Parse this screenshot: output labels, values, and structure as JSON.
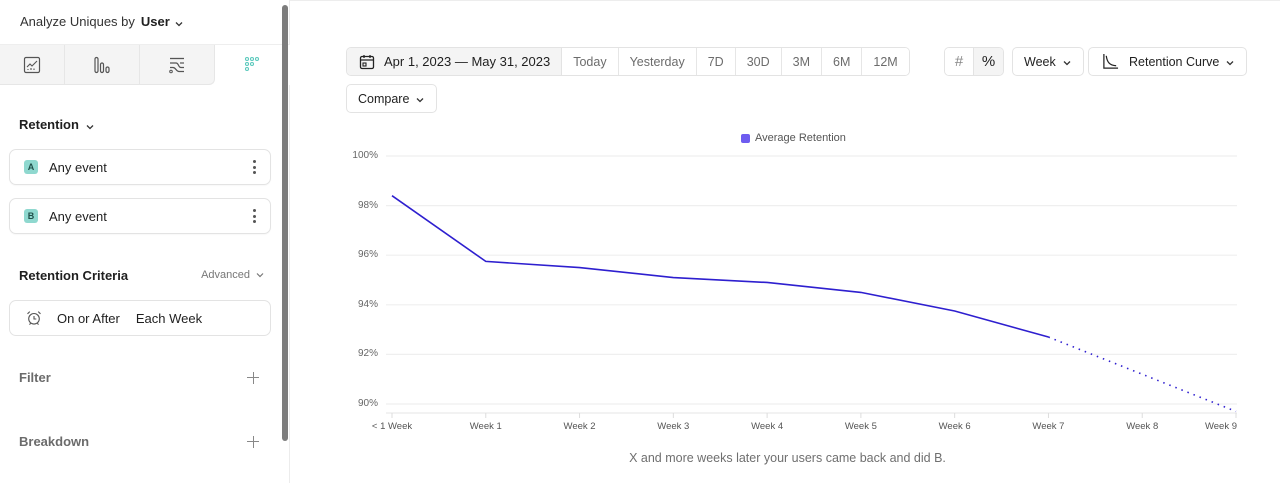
{
  "sidebar": {
    "analyze_label": "Analyze Uniques by",
    "analyze_value": "User",
    "report_tabs": [
      {
        "icon": "insights-chart-icon",
        "active": false
      },
      {
        "icon": "funnels-bars-icon",
        "active": false
      },
      {
        "icon": "flows-icon",
        "active": false
      },
      {
        "icon": "retention-dots-icon",
        "active": true
      }
    ],
    "section_title": "Retention",
    "events": [
      {
        "badge": "A",
        "name": "Any event"
      },
      {
        "badge": "B",
        "name": "Any event"
      }
    ],
    "criteria_title": "Retention Criteria",
    "advanced_label": "Advanced",
    "criteria": {
      "icon": "alarm-clock-icon",
      "condition": "On or After",
      "period": "Each Week"
    },
    "filter_label": "Filter",
    "breakdown_label": "Breakdown"
  },
  "toolbar": {
    "date_range": "Apr 1, 2023 — May 31, 2023",
    "presets": [
      "Today",
      "Yesterday",
      "7D",
      "30D",
      "3M",
      "6M",
      "12M"
    ],
    "compare_label": "Compare",
    "number_toggle": "#",
    "percent_toggle": "%",
    "interval_label": "Week",
    "chart_type_label": "Retention Curve"
  },
  "colors": {
    "line": "#2e1fcf",
    "legend_swatch": "#6e5cf0",
    "accent_teal": "#5cc9bd",
    "gridline": "#efefef"
  },
  "chart_data": {
    "type": "line",
    "title": "",
    "legend": [
      "Average Retention"
    ],
    "legend_position": "top",
    "xlabel": "X and more weeks later your users came back and did B.",
    "ylabel": "",
    "categories": [
      "< 1 Week",
      "Week 1",
      "Week 2",
      "Week 3",
      "Week 4",
      "Week 5",
      "Week 6",
      "Week 7",
      "Week 8",
      "Week 9"
    ],
    "series": [
      {
        "name": "Average Retention",
        "values": [
          98.4,
          95.75,
          95.5,
          95.1,
          94.9,
          94.5,
          93.75,
          92.7,
          91.2,
          89.7
        ],
        "solid_until_index": 7,
        "projected_from_index": 7
      }
    ],
    "yticks": [
      "100%",
      "98%",
      "96%",
      "94%",
      "92%",
      "90%"
    ],
    "ylim": [
      90,
      100
    ],
    "grid": true
  }
}
